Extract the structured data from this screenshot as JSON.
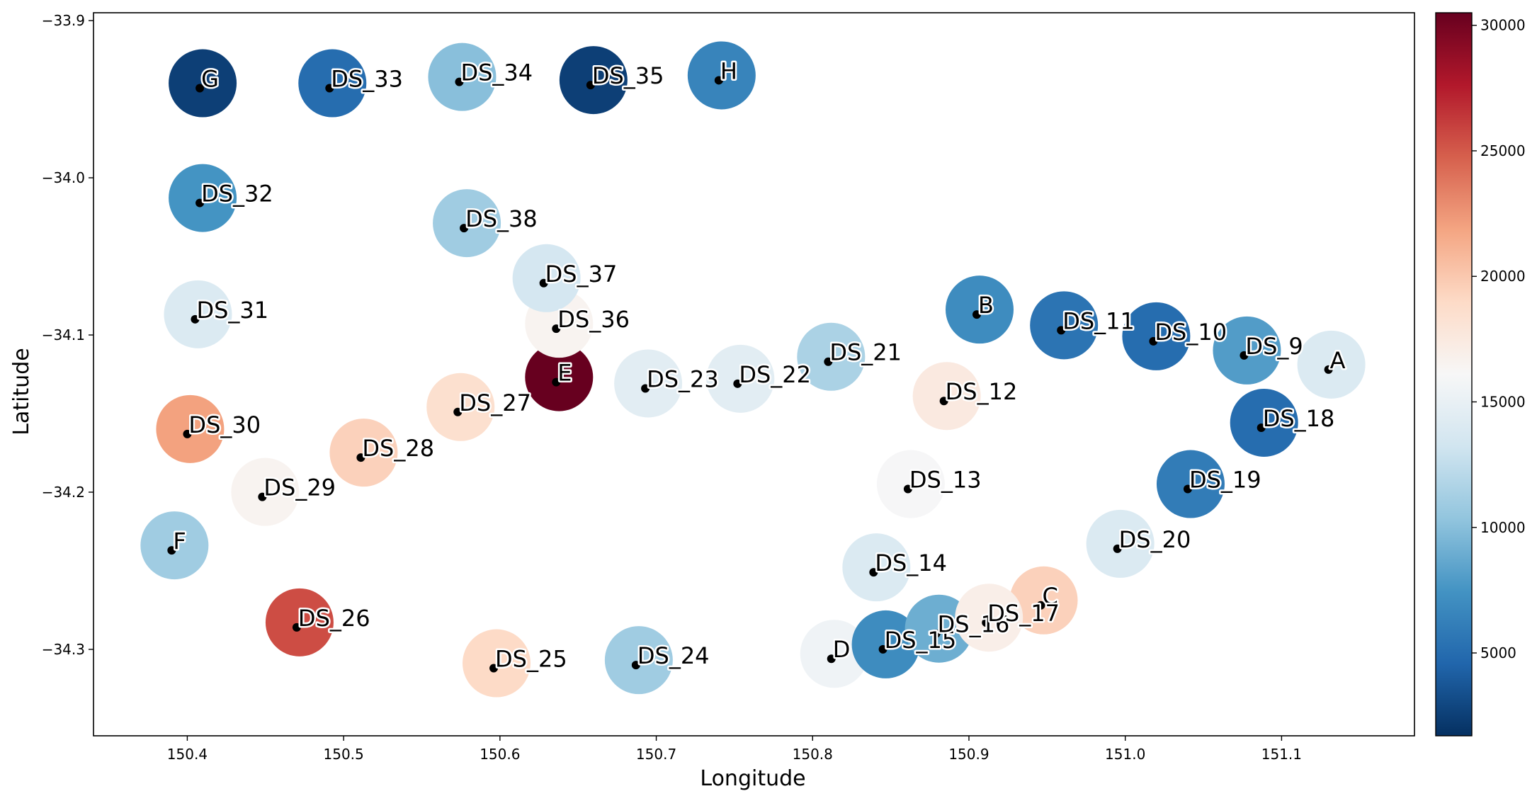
{
  "chart_data": {
    "type": "scatter",
    "xlabel": "Longitude",
    "ylabel": "Latitude",
    "xlim": [
      150.34,
      151.185
    ],
    "ylim": [
      -34.355,
      -33.895
    ],
    "xticks": [
      150.4,
      150.5,
      150.6,
      150.7,
      150.8,
      150.9,
      151.0,
      151.1
    ],
    "xtick_labels": [
      "150.4",
      "150.5",
      "150.6",
      "150.7",
      "150.8",
      "150.9",
      "151.0",
      "151.1"
    ],
    "yticks": [
      -33.9,
      -34.0,
      -34.1,
      -34.2,
      -34.3
    ],
    "ytick_labels": [
      "−33.9",
      "−34.0",
      "−34.1",
      "−34.2",
      "−34.3"
    ],
    "colorbar": {
      "colormap": "RdBu_r",
      "range": [
        1700,
        30500
      ],
      "ticks": [
        5000,
        10000,
        15000,
        20000,
        25000,
        30000
      ],
      "tick_labels": [
        "5000",
        "10000",
        "15000",
        "20000",
        "25000",
        "30000"
      ]
    },
    "grid": false,
    "points": [
      {
        "label": "A",
        "x": 151.13,
        "y": -34.122,
        "value": 14000
      },
      {
        "label": "B",
        "x": 150.905,
        "y": -34.087,
        "value": 7000
      },
      {
        "label": "C",
        "x": 150.946,
        "y": -34.272,
        "value": 19500
      },
      {
        "label": "D",
        "x": 150.812,
        "y": -34.306,
        "value": 15500
      },
      {
        "label": "E",
        "x": 150.636,
        "y": -34.13,
        "value": 30500
      },
      {
        "label": "F",
        "x": 150.39,
        "y": -34.237,
        "value": 11000
      },
      {
        "label": "G",
        "x": 150.408,
        "y": -33.943,
        "value": 2500
      },
      {
        "label": "H",
        "x": 150.74,
        "y": -33.938,
        "value": 6500
      },
      {
        "label": "DS_9",
        "x": 151.076,
        "y": -34.113,
        "value": 8000
      },
      {
        "label": "DS_10",
        "x": 151.018,
        "y": -34.104,
        "value": 5000
      },
      {
        "label": "DS_11",
        "x": 150.959,
        "y": -34.097,
        "value": 5500
      },
      {
        "label": "DS_12",
        "x": 150.884,
        "y": -34.142,
        "value": 17500
      },
      {
        "label": "DS_13",
        "x": 150.861,
        "y": -34.198,
        "value": 16000
      },
      {
        "label": "DS_14",
        "x": 150.839,
        "y": -34.251,
        "value": 14000
      },
      {
        "label": "DS_15",
        "x": 150.845,
        "y": -34.3,
        "value": 7000
      },
      {
        "label": "DS_16",
        "x": 150.879,
        "y": -34.29,
        "value": 9000
      },
      {
        "label": "DS_17",
        "x": 150.911,
        "y": -34.283,
        "value": 17000
      },
      {
        "label": "DS_18",
        "x": 151.087,
        "y": -34.159,
        "value": 5000
      },
      {
        "label": "DS_19",
        "x": 151.04,
        "y": -34.198,
        "value": 6000
      },
      {
        "label": "DS_20",
        "x": 150.995,
        "y": -34.236,
        "value": 14000
      },
      {
        "label": "DS_21",
        "x": 150.81,
        "y": -34.117,
        "value": 11500
      },
      {
        "label": "DS_22",
        "x": 150.752,
        "y": -34.131,
        "value": 14500
      },
      {
        "label": "DS_23",
        "x": 150.693,
        "y": -34.134,
        "value": 14500
      },
      {
        "label": "DS_24",
        "x": 150.687,
        "y": -34.31,
        "value": 11000
      },
      {
        "label": "DS_25",
        "x": 150.596,
        "y": -34.312,
        "value": 19000
      },
      {
        "label": "DS_26",
        "x": 150.47,
        "y": -34.286,
        "value": 25500
      },
      {
        "label": "DS_27",
        "x": 150.573,
        "y": -34.149,
        "value": 18500
      },
      {
        "label": "DS_28",
        "x": 150.511,
        "y": -34.178,
        "value": 19500
      },
      {
        "label": "DS_29",
        "x": 150.448,
        "y": -34.203,
        "value": 16500
      },
      {
        "label": "DS_30",
        "x": 150.4,
        "y": -34.163,
        "value": 22000
      },
      {
        "label": "DS_31",
        "x": 150.405,
        "y": -34.09,
        "value": 14000
      },
      {
        "label": "DS_32",
        "x": 150.408,
        "y": -34.016,
        "value": 7500
      },
      {
        "label": "DS_33",
        "x": 150.491,
        "y": -33.943,
        "value": 5000
      },
      {
        "label": "DS_34",
        "x": 150.574,
        "y": -33.939,
        "value": 10000
      },
      {
        "label": "DS_35",
        "x": 150.658,
        "y": -33.941,
        "value": 2500
      },
      {
        "label": "DS_36",
        "x": 150.636,
        "y": -34.096,
        "value": 16500
      },
      {
        "label": "DS_37",
        "x": 150.628,
        "y": -34.067,
        "value": 13500
      },
      {
        "label": "DS_38",
        "x": 150.577,
        "y": -34.032,
        "value": 11000
      }
    ]
  }
}
